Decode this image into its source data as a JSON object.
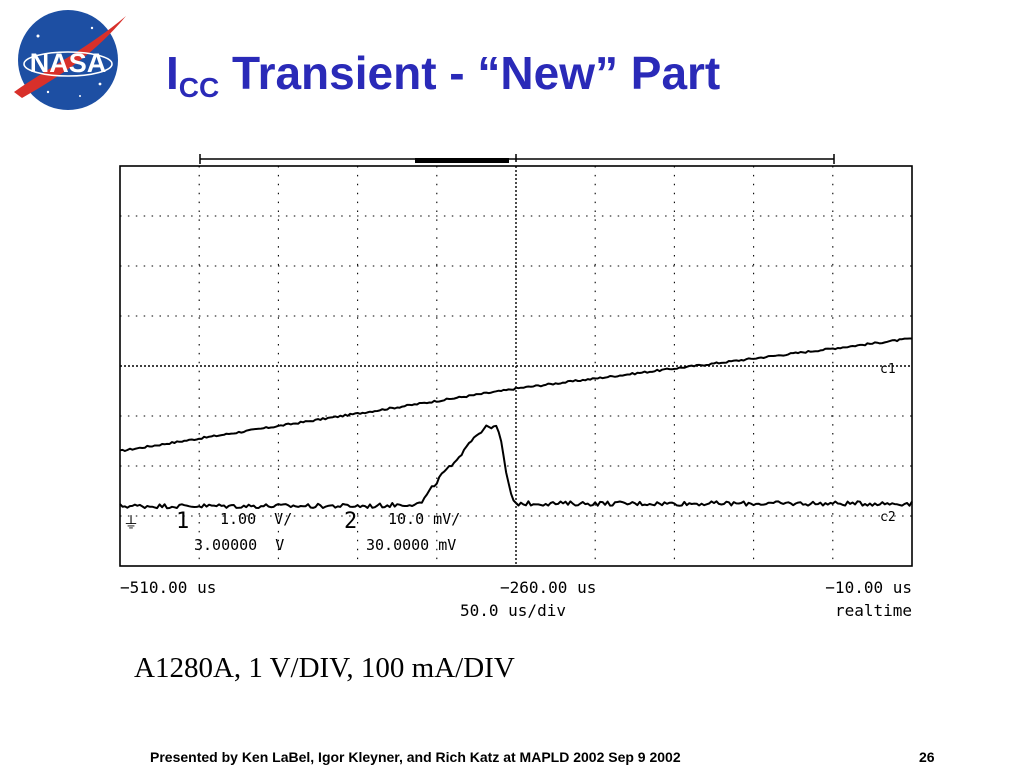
{
  "slide": {
    "logo_text": "NASA",
    "title_main": "I",
    "title_sub": "CC",
    "title_rest": " Transient - “New” Part",
    "caption": "A1280A, 1 V/DIV, 100 mA/DIV",
    "footer": "Presented by Ken LaBel, Igor Kleyner, and Rich Katz at MAPLD 2002 Sep 9 2002",
    "page_number": "26"
  },
  "colors": {
    "title": "#2a2ab8",
    "logo_blue": "#1d4fa3",
    "logo_red": "#d8302a",
    "trace": "#000000"
  },
  "chart_data": {
    "type": "line",
    "title": "",
    "xlabel": "",
    "ylabel": "",
    "x_unit": "us",
    "xlim": [
      -510,
      -10
    ],
    "x_tick_labels": {
      "left": "−510.00 us",
      "center": "−260.00 us",
      "right": "−10.00 us"
    },
    "timebase": "50.0 us/div",
    "mode": "realtime",
    "grid": true,
    "grid_divisions": {
      "x": 10,
      "y": 8
    },
    "channel_markers": [
      "c1",
      "c2"
    ],
    "channel_settings": {
      "ch1": {
        "number": "1",
        "scale": "1.00  V/",
        "offset": "3.00000  V"
      },
      "ch2": {
        "number": "2",
        "scale": "10.0 mV/",
        "offset": "30.0000 mV"
      }
    },
    "ylim_divisions": [
      0,
      8
    ],
    "series": [
      {
        "x": [
          -510,
          -460,
          -410,
          -360,
          -310,
          -280,
          -265,
          -260,
          -210,
          -160,
          -110,
          -60,
          -10
        ],
        "values": [
          2.3,
          2.55,
          2.8,
          3.05,
          3.3,
          3.45,
          3.52,
          3.55,
          3.75,
          3.95,
          4.15,
          4.35,
          4.55
        ]
      },
      {
        "x": [
          -510,
          -400,
          -350,
          -320,
          -312,
          -305,
          -298,
          -292,
          -285,
          -280,
          -276,
          -272,
          -270,
          -267,
          -263,
          -262,
          -260,
          -220,
          -160,
          -100,
          -10
        ],
        "values": [
          1.2,
          1.2,
          1.2,
          1.25,
          1.6,
          1.9,
          2.05,
          2.4,
          2.62,
          2.75,
          2.8,
          2.76,
          2.6,
          2.0,
          1.4,
          1.28,
          1.25,
          1.25,
          1.25,
          1.25,
          1.25
        ]
      }
    ]
  }
}
